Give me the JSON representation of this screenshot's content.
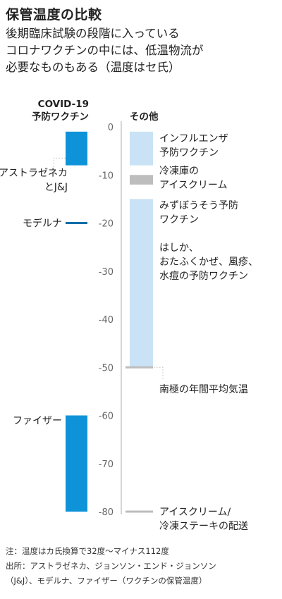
{
  "title": "保管温度の比較",
  "subtitle": [
    "後期臨床試験の段階に入っている",
    "コロナワクチンの中には、低温物流が",
    "必要なものもある（温度はセ氏）"
  ],
  "colors": {
    "vaccine": "#0f93d8",
    "vaccine_line": "#0e6fa8",
    "other": "#c9e2f5",
    "gray": "#bdbdbd",
    "axis": "#d6d6d6",
    "tick_text": "#666666",
    "text": "#222222"
  },
  "chart_data": {
    "type": "range-bar",
    "y_unit": "°C",
    "ylim": [
      -80,
      0
    ],
    "yticks": [
      0,
      -10,
      -20,
      -30,
      -40,
      -50,
      -60,
      -70,
      -80
    ],
    "left_column": {
      "header": [
        "COVID-19",
        "予防ワクチン"
      ],
      "items": [
        {
          "label": [
            "アストラゼネカ",
            "とJ&J"
          ],
          "min": -8,
          "max": -1,
          "kind": "bar"
        },
        {
          "label": [
            "モデルナ"
          ],
          "min": -20,
          "max": -20,
          "kind": "line"
        },
        {
          "label": [
            "ファイザー"
          ],
          "min": -80,
          "max": -60,
          "kind": "bar"
        }
      ]
    },
    "right_column": {
      "header": [
        "その他"
      ],
      "items": [
        {
          "label": [
            "インフルエンザ",
            "予防ワクチン"
          ],
          "min": -8,
          "max": -1,
          "kind": "bar",
          "color": "other"
        },
        {
          "label": [
            "冷凍庫の",
            "アイスクリーム"
          ],
          "min": -12,
          "max": -10,
          "kind": "bar",
          "color": "gray"
        },
        {
          "label": [
            "みずぼうそう予防",
            "ワクチン"
          ],
          "min": -50,
          "max": -15,
          "kind": "bar",
          "color": "other"
        },
        {
          "label": [
            "はしか、",
            "おたふくかぜ、風疹、",
            "水痘の予防ワクチン"
          ],
          "min": -50,
          "max": -15,
          "kind": "note"
        },
        {
          "label": [
            "南極の年間平均気温"
          ],
          "min": -50,
          "max": -50,
          "kind": "line",
          "color": "gray"
        },
        {
          "label": [
            "アイスクリーム/",
            "冷凍ステーキの配送"
          ],
          "min": -80,
          "max": -80,
          "kind": "line",
          "color": "gray"
        }
      ]
    }
  },
  "footer": [
    "注：温度はカ氏換算で32度～マイナス112度",
    "出所：アストラゼネカ、ジョンソン・エンド・ジョンソン",
    "（J&J）、モデルナ、ファイザー（ワクチンの保管温度）"
  ]
}
